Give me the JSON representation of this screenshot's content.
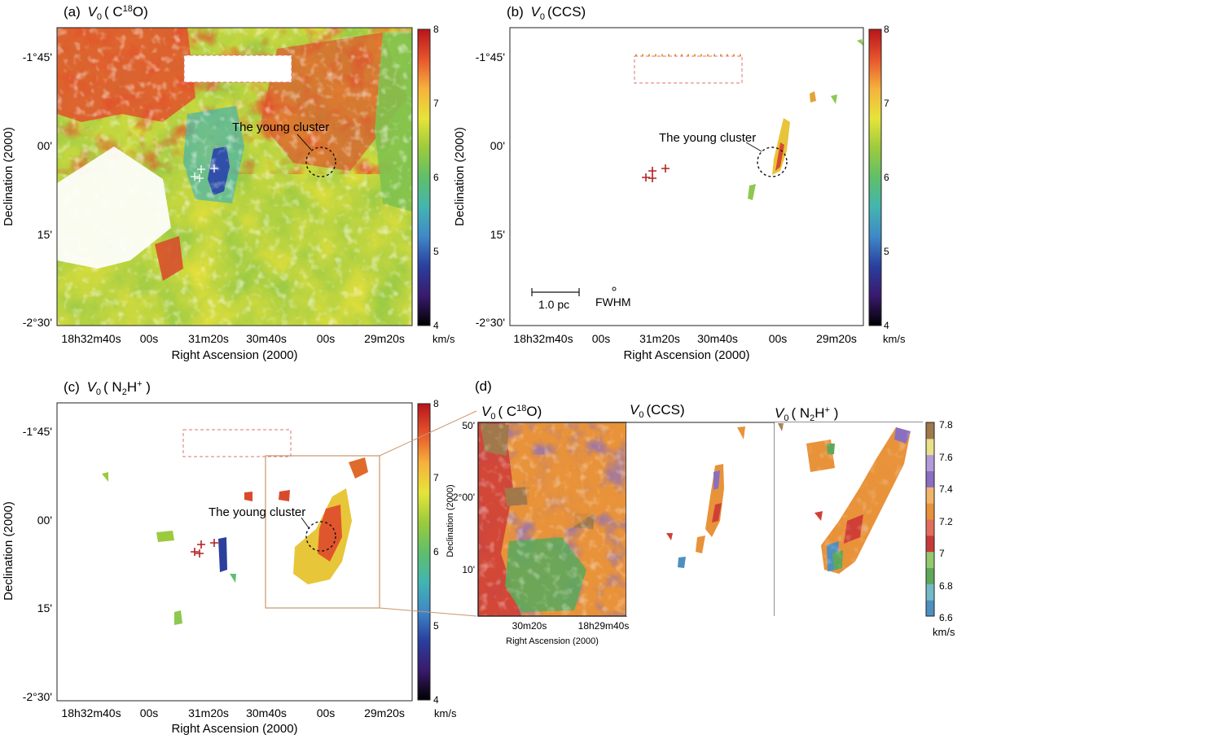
{
  "figure": {
    "scale_labels": {
      "bar": "1.0 pc",
      "beam": "FWHM"
    }
  },
  "colorbar_main": {
    "label": "km/s",
    "ticks": [
      "4",
      "5",
      "6",
      "7",
      "8"
    ],
    "range": [
      4,
      8
    ],
    "colormap": [
      "#000000",
      "#3a1a6e",
      "#2a3f9e",
      "#3f88c8",
      "#43b5b0",
      "#5fbf6a",
      "#9ccb3c",
      "#e6e43a",
      "#f6b13b",
      "#e7542c",
      "#b8141c"
    ]
  },
  "colorbar_d": {
    "label": "km/s",
    "ticks": [
      "6.6",
      "6.8",
      "7",
      "7.2",
      "7.4",
      "7.6",
      "7.8"
    ],
    "range": [
      6.6,
      7.8
    ],
    "bands": [
      "#4e8fc0",
      "#74b9c8",
      "#5fa85a",
      "#93c86d",
      "#c73a3a",
      "#e36d5a",
      "#e8923a",
      "#f2b46a",
      "#8a6fc0",
      "#b49ad8",
      "#e8e08a",
      "#a0784a"
    ]
  },
  "chart_data": [
    {
      "id": "a",
      "type": "heatmap",
      "title": "(a) V0 ( C18O)",
      "title_parts": {
        "panel": "(a)",
        "var": "V",
        "sub": "0",
        "species": "( C",
        "sup": "18",
        "tail": "O)"
      },
      "xlabel": "Right Ascension (2000)",
      "ylabel": "Declination (2000)",
      "xticks": [
        "18h32m40s",
        "00s",
        "31m20s",
        "30m40s",
        "00s",
        "29m20s"
      ],
      "yticks": [
        "-1°45'",
        "00'",
        "15'",
        "-2°30'"
      ],
      "annotations": [
        "The young cluster"
      ],
      "sources": 4,
      "colorbar": "colorbar_main"
    },
    {
      "id": "b",
      "type": "heatmap",
      "title": "(b) V0 (CCS)",
      "title_parts": {
        "panel": "(b)",
        "var": "V",
        "sub": "0",
        "species": "(CCS)"
      },
      "xlabel": "Right Ascension (2000)",
      "ylabel": "Declination (2000)",
      "xticks": [
        "18h32m40s",
        "00s",
        "31m20s",
        "30m40s",
        "00s",
        "29m20s"
      ],
      "yticks": [
        "-1°45'",
        "00'",
        "15'",
        "-2°30'"
      ],
      "annotations": [
        "The young cluster",
        "1.0 pc",
        "FWHM"
      ],
      "sources": 4,
      "colorbar": "colorbar_main"
    },
    {
      "id": "c",
      "type": "heatmap",
      "title": "(c) V0 ( N2H+ )",
      "title_parts": {
        "panel": "(c)",
        "var": "V",
        "sub": "0",
        "species": "( N",
        "sub2": "2",
        "tail": "H",
        "sup": "+",
        "close": " )"
      },
      "xlabel": "Right Ascension (2000)",
      "ylabel": "Declination (2000)",
      "xticks": [
        "18h32m40s",
        "00s",
        "31m20s",
        "30m40s",
        "00s",
        "29m20s"
      ],
      "yticks": [
        "-1°45'",
        "00'",
        "15'",
        "-2°30'"
      ],
      "annotations": [
        "The young cluster"
      ],
      "sources": 4,
      "colorbar": "colorbar_main"
    },
    {
      "id": "d",
      "type": "heatmap",
      "title": "(d)",
      "subpanels": [
        {
          "title_parts": {
            "var": "V",
            "sub": "0",
            "species": "( C",
            "sup": "18",
            "tail": "O)"
          }
        },
        {
          "title_parts": {
            "var": "V",
            "sub": "0",
            "species": "(CCS)"
          }
        },
        {
          "title_parts": {
            "var": "V",
            "sub": "0",
            "species": "( N",
            "sub2": "2",
            "tail": "H",
            "sup": "+",
            "close": " )"
          }
        }
      ],
      "xlabel": "Right Ascension (2000)",
      "ylabel": "Declination (2000)",
      "xticks": [
        "30m20s",
        "18h29m40s"
      ],
      "yticks": [
        "50'",
        "-2°00'",
        "10'"
      ],
      "colorbar": "colorbar_d"
    }
  ]
}
